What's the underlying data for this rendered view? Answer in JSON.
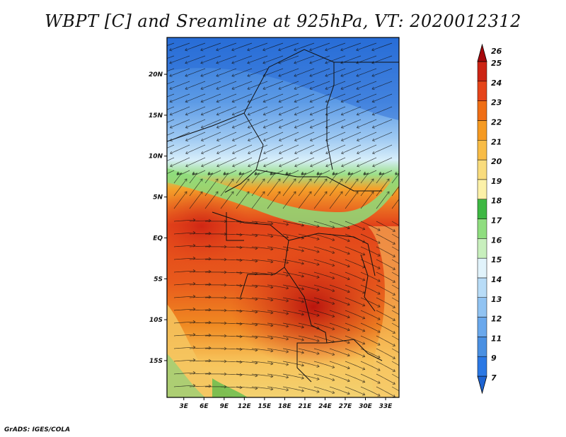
{
  "title": "WBPT [C] and Sreamline at 925hPa, VT: 2020012312",
  "credit": "GrADS: IGES/COLA",
  "map": {
    "lat_labels": [
      "20N",
      "15N",
      "10N",
      "5N",
      "EQ",
      "5S",
      "10S",
      "15S"
    ],
    "lat_values": [
      20,
      15,
      10,
      5,
      0,
      -5,
      -10,
      -15
    ],
    "lon_labels": [
      "3E",
      "6E",
      "9E",
      "12E",
      "15E",
      "18E",
      "21E",
      "24E",
      "27E",
      "30E",
      "33E"
    ],
    "lon_values": [
      3,
      6,
      9,
      12,
      15,
      18,
      21,
      24,
      27,
      30,
      33
    ],
    "lat_range": [
      -19.5,
      24.5
    ],
    "lon_range": [
      0.5,
      35
    ]
  },
  "colorbar": {
    "labels": [
      "7",
      "9",
      "11",
      "12",
      "13",
      "14",
      "15",
      "16",
      "17",
      "18",
      "19",
      "20",
      "21",
      "22",
      "23",
      "24",
      "25",
      "26"
    ],
    "colors": [
      "#1e64d2",
      "#2b78e4",
      "#4a90e2",
      "#6aa8ec",
      "#91c3f2",
      "#b8dcf7",
      "#e1f3fb",
      "#c8efbd",
      "#8fdd7f",
      "#3eb843",
      "#fcf1a8",
      "#f9dc7d",
      "#f8bc46",
      "#f59a22",
      "#ef6e15",
      "#e5441a",
      "#cc2414",
      "#a5070b"
    ]
  }
}
